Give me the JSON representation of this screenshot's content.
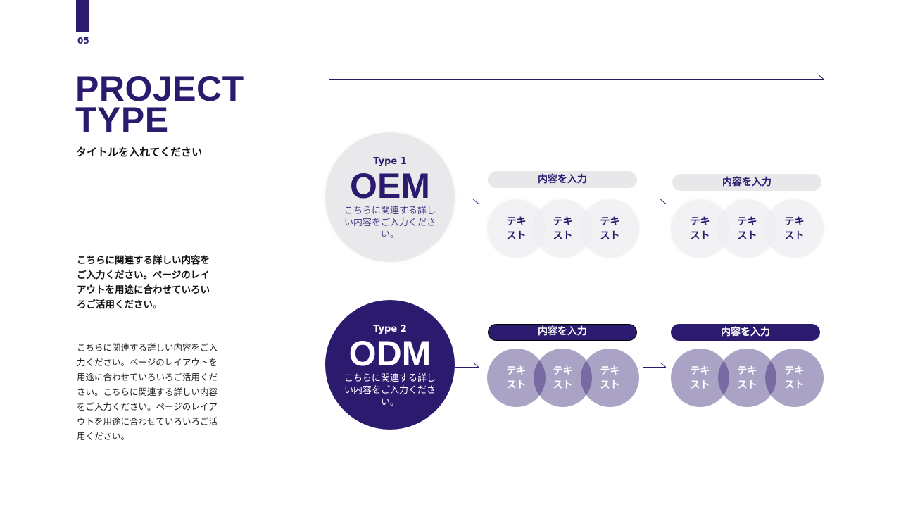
{
  "page": {
    "number": "05",
    "title_line1": "PROJECT",
    "title_line2": "TYPE",
    "subtitle": "タイトルを入れてください",
    "lead": "こちらに関連する詳しい内容をご入力ください。ページのレイアウトを用途に合わせていろいろご活用ください。",
    "body": "こちらに関連する詳しい内容をご入力ください。ページのレイアウトを用途に合わせていろいろご活用ください。こちらに関連する詳しい内容をご入力ください。ページのレイアウトを用途に合わせていろいろご活用ください。"
  },
  "colors": {
    "primary": "#2b1a6e",
    "light": "#e9e9ec"
  },
  "types": [
    {
      "label": "Type 1",
      "name": "OEM",
      "desc": "こちらに関連する詳しい内容をご入力ください。",
      "groups": [
        {
          "pill": "内容を入力",
          "items": [
            "テキスト",
            "テキスト",
            "テキスト"
          ]
        },
        {
          "pill": "内容を入力",
          "items": [
            "テキスト",
            "テキスト",
            "テキスト"
          ]
        }
      ]
    },
    {
      "label": "Type 2",
      "name": "ODM",
      "desc": "こちらに関連する詳しい内容をご入力ください。",
      "groups": [
        {
          "pill": "内容を入力",
          "items": [
            "テキスト",
            "テキスト",
            "テキスト"
          ]
        },
        {
          "pill": "内容を入力",
          "items": [
            "テキスト",
            "テキスト",
            "テキスト"
          ]
        }
      ]
    }
  ]
}
